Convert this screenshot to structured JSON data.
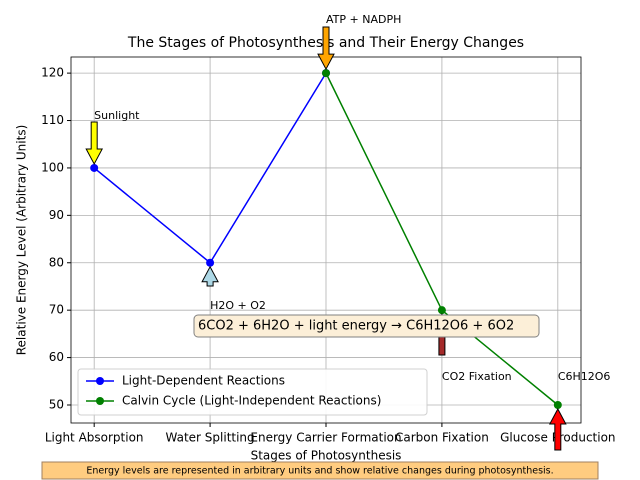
{
  "chart_data": {
    "type": "line",
    "title": "The Stages of Photosynthesis and Their Energy Changes",
    "xlabel": "Stages of Photosynthesis",
    "ylabel": "Relative Energy Level (Arbitrary Units)",
    "categories": [
      "Light Absorption",
      "Water Splitting",
      "Energy Carrier Formation",
      "Carbon Fixation",
      "Glucose Production"
    ],
    "series": [
      {
        "name": "Light-Dependent Reactions",
        "color": "#0000ff",
        "values": [
          100,
          80,
          120,
          null,
          null
        ]
      },
      {
        "name": "Calvin Cycle (Light-Independent Reactions)",
        "color": "#008000",
        "values": [
          null,
          null,
          120,
          70,
          50
        ]
      }
    ],
    "ylim": [
      46.2,
      123.4
    ],
    "yticks": [
      50,
      60,
      70,
      80,
      90,
      100,
      110,
      120
    ],
    "grid": true,
    "legend": "lower left",
    "annotations": [
      {
        "text": "Sunlight",
        "color": "#ffff00"
      },
      {
        "text": "H2O + O2",
        "color": "#add8e6"
      },
      {
        "text": "ATP + NADPH",
        "color": "#ffa500"
      },
      {
        "text": "CO2 Fixation",
        "color": "#a52a2a"
      },
      {
        "text": "C6H12O6",
        "color": "#ff0000"
      }
    ],
    "equation": "6CO2 + 6H2O + light energy → C6H12O6 + 6O2",
    "note": "Energy levels are represented in arbitrary units and show relative changes during photosynthesis."
  }
}
